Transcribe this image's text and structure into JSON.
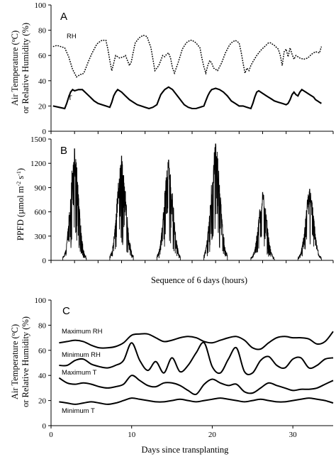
{
  "chart_data": [
    {
      "id": "A",
      "type": "line",
      "panel_label": "A",
      "ylabel_lines": [
        "Air Temperature (oC)",
        "or Relative Humidity (%)"
      ],
      "ylabel_line1_base": "Air Temperature (",
      "ylabel_line1_sup": "o",
      "ylabel_line1_rest": "C)",
      "ylim": [
        0,
        100
      ],
      "yticks": [
        "0",
        "20",
        "40",
        "60",
        "80",
        "100"
      ],
      "x_domain": [
        0,
        144
      ],
      "xtick_count": 13,
      "series": [
        {
          "name": "RH",
          "style": "dotted",
          "color": "#000000",
          "x": [
            1,
            3,
            5,
            7,
            9,
            10,
            11,
            12,
            13,
            14,
            15,
            16,
            17,
            19,
            21,
            23,
            24,
            26,
            28,
            29,
            30,
            31,
            33,
            35,
            37,
            38,
            39,
            40,
            41,
            42,
            43,
            44,
            45,
            47,
            49,
            51,
            53,
            55,
            56,
            57,
            58,
            59,
            60,
            61,
            62,
            63,
            65,
            67,
            69,
            71,
            72,
            74,
            76,
            77,
            78,
            79,
            80,
            81,
            82,
            83,
            85,
            87,
            89,
            91,
            92,
            94,
            96,
            97,
            98,
            99,
            100,
            101,
            102,
            103,
            105,
            107,
            109,
            111,
            112,
            114,
            116,
            117,
            118,
            119,
            120,
            121,
            122,
            123,
            124,
            125,
            127,
            129,
            131,
            133,
            135,
            137,
            138
          ],
          "y": [
            67,
            68,
            67,
            66,
            59,
            54,
            49,
            46,
            43,
            44,
            45,
            45,
            47,
            55,
            62,
            68,
            70,
            72,
            72,
            65,
            56,
            48,
            60,
            58,
            59,
            60,
            56,
            52,
            55,
            63,
            70,
            72,
            74,
            76,
            75,
            66,
            48,
            52,
            56,
            60,
            59,
            61,
            62,
            58,
            50,
            46,
            55,
            65,
            70,
            72,
            72,
            70,
            66,
            58,
            51,
            46,
            52,
            56,
            54,
            50,
            48,
            54,
            62,
            68,
            70,
            72,
            70,
            63,
            54,
            46,
            50,
            48,
            52,
            55,
            60,
            64,
            67,
            70,
            70,
            68,
            65,
            60,
            52,
            63,
            65,
            59,
            66,
            61,
            57,
            60,
            58,
            57,
            58,
            61,
            63,
            62,
            67
          ]
        },
        {
          "name": "T",
          "style": "solid",
          "color": "#000000",
          "x": [
            1,
            4,
            7,
            8,
            9,
            10,
            11,
            12,
            14,
            16,
            18,
            20,
            22,
            24,
            26,
            28,
            30,
            31,
            32,
            33,
            34,
            36,
            38,
            40,
            42,
            44,
            46,
            48,
            50,
            52,
            54,
            55,
            56,
            57,
            58,
            60,
            62,
            64,
            66,
            68,
            70,
            72,
            74,
            76,
            78,
            79,
            80,
            81,
            82,
            84,
            86,
            88,
            90,
            92,
            94,
            96,
            98,
            100,
            102,
            103,
            104,
            105,
            106,
            108,
            110,
            112,
            114,
            116,
            118,
            120,
            121,
            122,
            123,
            124,
            125,
            126,
            127,
            128,
            130,
            132,
            134,
            135,
            136,
            137,
            138
          ],
          "y": [
            20,
            19,
            18,
            22,
            27,
            31,
            33,
            32,
            33,
            33,
            30,
            27,
            24,
            22,
            21,
            20,
            19,
            23,
            28,
            31,
            33,
            31,
            28,
            25,
            23,
            21,
            20,
            19,
            18,
            19,
            21,
            25,
            29,
            31,
            33,
            35,
            33,
            29,
            25,
            21,
            19,
            18,
            18,
            19,
            20,
            24,
            28,
            31,
            33,
            34,
            33,
            31,
            28,
            24,
            22,
            20,
            20,
            19,
            18,
            22,
            27,
            31,
            32,
            30,
            28,
            26,
            24,
            23,
            22,
            21,
            22,
            25,
            29,
            31,
            29,
            28,
            31,
            33,
            31,
            29,
            27,
            25,
            24,
            23,
            22
          ]
        }
      ],
      "annotations": [
        "RH",
        "T"
      ]
    },
    {
      "id": "B",
      "type": "line",
      "panel_label": "B",
      "ylabel_base": "PPFD (µmol m",
      "ylabel_sup1": "-2",
      "ylabel_mid": " s",
      "ylabel_sup2": "-1",
      "ylabel_end": ")",
      "ylim": [
        0,
        1500
      ],
      "yticks": [
        "0",
        "300",
        "600",
        "900",
        "1200",
        "1500"
      ],
      "x_domain": [
        0,
        144
      ],
      "xtick_count": 13,
      "xlabel": "Sequence of 6 days (hours)",
      "days": [
        {
          "start": 6,
          "end": 18,
          "peak": 1380,
          "hwid": 3.0
        },
        {
          "start": 30,
          "end": 42,
          "peak": 1290,
          "hwid": 3.2
        },
        {
          "start": 54,
          "end": 66,
          "peak": 1240,
          "hwid": 3.2
        },
        {
          "start": 78,
          "end": 90,
          "peak": 1440,
          "hwid": 3.3
        },
        {
          "start": 102,
          "end": 114,
          "peak": 840,
          "hwid": 3.0
        },
        {
          "start": 126,
          "end": 138,
          "peak": 880,
          "hwid": 3.0
        }
      ]
    },
    {
      "id": "C",
      "type": "line",
      "panel_label": "C",
      "ylabel_lines": [
        "Air Temperature (oC)",
        "or Relative Humidity (%)"
      ],
      "ylabel_line1_base": "Air Temperature (",
      "ylabel_line1_sup": "o",
      "ylabel_line1_rest": "C)",
      "xlabel": "Days since transplanting",
      "xlim": [
        0,
        35
      ],
      "xticks": [
        "0",
        "10",
        "20",
        "30"
      ],
      "xtick_values": [
        0,
        10,
        20,
        30
      ],
      "ylim": [
        0,
        100
      ],
      "yticks": [
        "0",
        "20",
        "40",
        "60",
        "80",
        "100"
      ],
      "series": [
        {
          "name": "Maximum RH",
          "x": [
            1,
            2,
            3,
            4,
            5,
            6,
            7,
            8,
            9,
            10,
            11,
            12,
            13,
            14,
            15,
            16,
            17,
            18,
            19,
            20,
            21,
            22,
            23,
            24,
            25,
            26,
            27,
            28,
            29,
            30,
            31,
            32,
            33,
            34,
            35
          ],
          "y": [
            66,
            67,
            68,
            67,
            64,
            62,
            62,
            63,
            66,
            72,
            73,
            73,
            70,
            67,
            68,
            70,
            71,
            70,
            67,
            66,
            68,
            70,
            71,
            68,
            62,
            61,
            66,
            70,
            71,
            70,
            70,
            69,
            65,
            67,
            75
          ]
        },
        {
          "name": "Minimum RH",
          "x": [
            1,
            2,
            3,
            4,
            5,
            6,
            7,
            8,
            9,
            10,
            11,
            12,
            13,
            14,
            15,
            16,
            17,
            18,
            19,
            20,
            21,
            22,
            23,
            24,
            25,
            26,
            27,
            28,
            29,
            30,
            31,
            32,
            33,
            34,
            35
          ],
          "y": [
            48,
            48,
            52,
            53,
            49,
            47,
            46,
            48,
            52,
            66,
            52,
            44,
            51,
            42,
            54,
            43,
            48,
            58,
            66,
            47,
            42,
            53,
            62,
            43,
            42,
            52,
            55,
            48,
            46,
            53,
            54,
            46,
            48,
            53,
            54
          ]
        },
        {
          "name": "Maximum T",
          "x": [
            1,
            2,
            3,
            4,
            5,
            6,
            7,
            8,
            9,
            10,
            11,
            12,
            13,
            14,
            15,
            16,
            17,
            18,
            19,
            20,
            21,
            22,
            23,
            24,
            25,
            26,
            27,
            28,
            29,
            30,
            31,
            32,
            33,
            34,
            35
          ],
          "y": [
            38,
            34,
            33,
            34,
            33,
            31,
            30,
            31,
            33,
            40,
            36,
            32,
            31,
            34,
            34,
            32,
            28,
            25,
            33,
            37,
            34,
            32,
            33,
            27,
            26,
            30,
            34,
            32,
            30,
            28,
            29,
            29,
            30,
            33,
            36
          ]
        },
        {
          "name": "Minimum T",
          "x": [
            1,
            2,
            3,
            4,
            5,
            6,
            7,
            8,
            9,
            10,
            11,
            12,
            13,
            14,
            15,
            16,
            17,
            18,
            19,
            20,
            21,
            22,
            23,
            24,
            25,
            26,
            27,
            28,
            29,
            30,
            31,
            32,
            33,
            34,
            35
          ],
          "y": [
            19,
            18,
            17,
            18,
            19,
            18,
            17,
            18,
            20,
            22,
            21,
            20,
            19,
            19,
            20,
            21,
            20,
            19,
            20,
            21,
            22,
            21,
            20,
            19,
            20,
            21,
            20,
            19,
            19,
            20,
            21,
            22,
            21,
            20,
            18
          ]
        }
      ],
      "annotations": [
        "Maximum RH",
        "Minimum RH",
        "Maximum T",
        "Minimum T"
      ]
    }
  ]
}
